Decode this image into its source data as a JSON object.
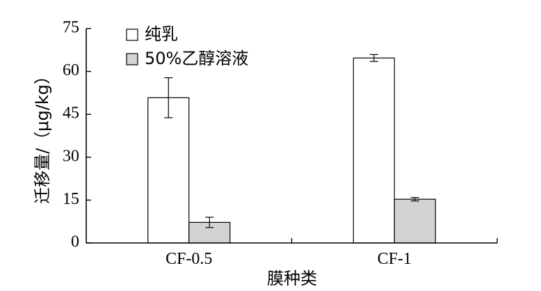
{
  "chart_data": {
    "type": "bar",
    "categories": [
      "CF-0.5",
      "CF-1"
    ],
    "series": [
      {
        "name": "纯乳",
        "values": [
          50.8,
          64.7
        ],
        "errors": [
          7.0,
          1.2
        ],
        "color": "#ffffff"
      },
      {
        "name": "50%乙醇溶液",
        "values": [
          7.2,
          15.3
        ],
        "errors": [
          1.8,
          0.6
        ],
        "color": "#d3d3d3"
      }
    ],
    "xlabel": "膜种类",
    "ylabel": "迁移量/（μg/kg）",
    "ylim": [
      0,
      75
    ],
    "yticks": [
      0,
      15,
      30,
      45,
      60,
      75
    ],
    "grid": false,
    "legend": "top-left"
  }
}
